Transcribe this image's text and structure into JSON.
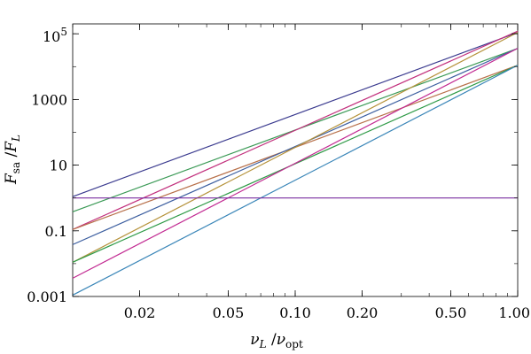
{
  "chart_data": {
    "type": "line",
    "title": "",
    "x_scale": "log",
    "y_scale": "log",
    "xlim": [
      0.01,
      1.0
    ],
    "ylim": [
      0.001,
      200000
    ],
    "grid": false,
    "legend": "none",
    "xlabel": {
      "base": "ν",
      "base_sub": "L",
      "slash": " /",
      "base2": "ν",
      "base2_sub": "opt"
    },
    "ylabel": {
      "base": "F",
      "base_sub": "sa",
      "slash": " /",
      "base2": "F",
      "base2_sub": "L"
    },
    "x_ticks": [
      {
        "value": 0.02,
        "label": "0.02"
      },
      {
        "value": 0.05,
        "label": "0.05"
      },
      {
        "value": 0.1,
        "label": "0.10"
      },
      {
        "value": 0.2,
        "label": "0.20"
      },
      {
        "value": 0.5,
        "label": "0.50"
      },
      {
        "value": 1.0,
        "label": "1.00"
      }
    ],
    "y_ticks": [
      {
        "value": 0.001,
        "label": "0.001"
      },
      {
        "value": 0.1,
        "label": "0.1"
      },
      {
        "value": 10,
        "label": "10"
      },
      {
        "value": 1000,
        "label": "1000"
      },
      {
        "value": 100000,
        "label": "10",
        "sup": "5"
      }
    ],
    "series": [
      {
        "color": "#3b3b8f",
        "x": [
          0.01,
          1.0
        ],
        "y": [
          1.1,
          110000
        ]
      },
      {
        "color": "#3b9a56",
        "x": [
          0.01,
          1.0
        ],
        "y": [
          0.38,
          36000
        ]
      },
      {
        "color": "#c2307d",
        "x": [
          0.01,
          1.0
        ],
        "y": [
          0.11,
          120000
        ]
      },
      {
        "color": "#b8704a",
        "x": [
          0.01,
          1.0
        ],
        "y": [
          0.11,
          11000
        ]
      },
      {
        "color": "#3d5fa0",
        "x": [
          0.01,
          1.0
        ],
        "y": [
          0.038,
          36000
        ]
      },
      {
        "color": "#b5923a",
        "x": [
          0.01,
          1.0
        ],
        "y": [
          0.011,
          110000
        ]
      },
      {
        "color": "#2e9a46",
        "x": [
          0.01,
          1.0
        ],
        "y": [
          0.011,
          11000
        ]
      },
      {
        "color": "#c22a92",
        "x": [
          0.01,
          1.0
        ],
        "y": [
          0.0036,
          36000
        ]
      },
      {
        "color": "#3a86b8",
        "x": [
          0.01,
          1.0
        ],
        "y": [
          0.0011,
          11000
        ]
      },
      {
        "color": "#7a2ea0",
        "x": [
          0.01,
          1.0
        ],
        "y": [
          1.0,
          1.0
        ]
      }
    ]
  }
}
